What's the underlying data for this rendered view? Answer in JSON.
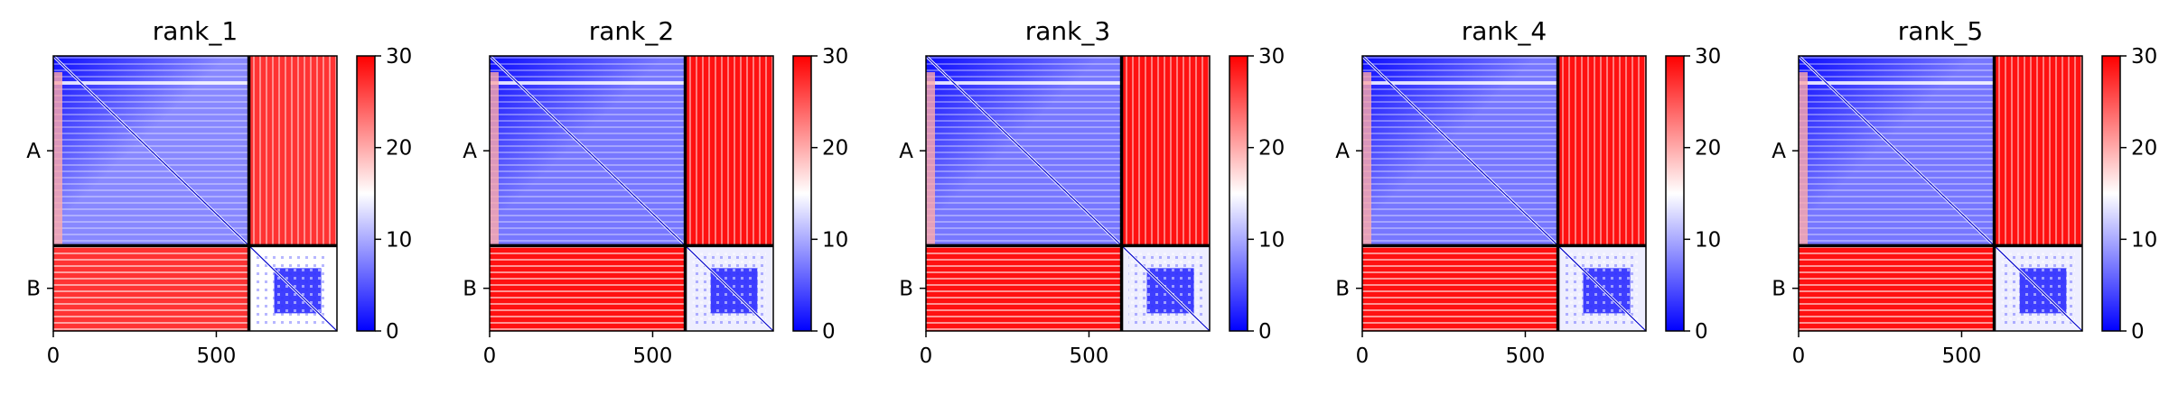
{
  "chart_data": {
    "type": "heatmap",
    "colormap": {
      "low": "#0000ff",
      "mid": "#ffffff",
      "high": "#ff0000"
    },
    "colorbar": {
      "min": 0,
      "max": 30,
      "ticks": [
        "0",
        "10",
        "20",
        "30"
      ]
    },
    "x_ticks": [
      "0",
      "500"
    ],
    "y_labels": [
      "A",
      "B"
    ],
    "x_range": [
      0,
      870
    ],
    "chains": [
      {
        "name": "A",
        "length": 600
      },
      {
        "name": "B",
        "length": 270
      }
    ],
    "panels": [
      {
        "title": "rank_1",
        "inter_chain_pae": 27,
        "intra_a_pae": 8,
        "intra_b_pae": 9
      },
      {
        "title": "rank_2",
        "inter_chain_pae": 29,
        "intra_a_pae": 7,
        "intra_b_pae": 8
      },
      {
        "title": "rank_3",
        "inter_chain_pae": 29,
        "intra_a_pae": 7,
        "intra_b_pae": 8
      },
      {
        "title": "rank_4",
        "inter_chain_pae": 29,
        "intra_a_pae": 7,
        "intra_b_pae": 8
      },
      {
        "title": "rank_5",
        "inter_chain_pae": 29,
        "intra_a_pae": 7,
        "intra_b_pae": 8
      }
    ]
  }
}
